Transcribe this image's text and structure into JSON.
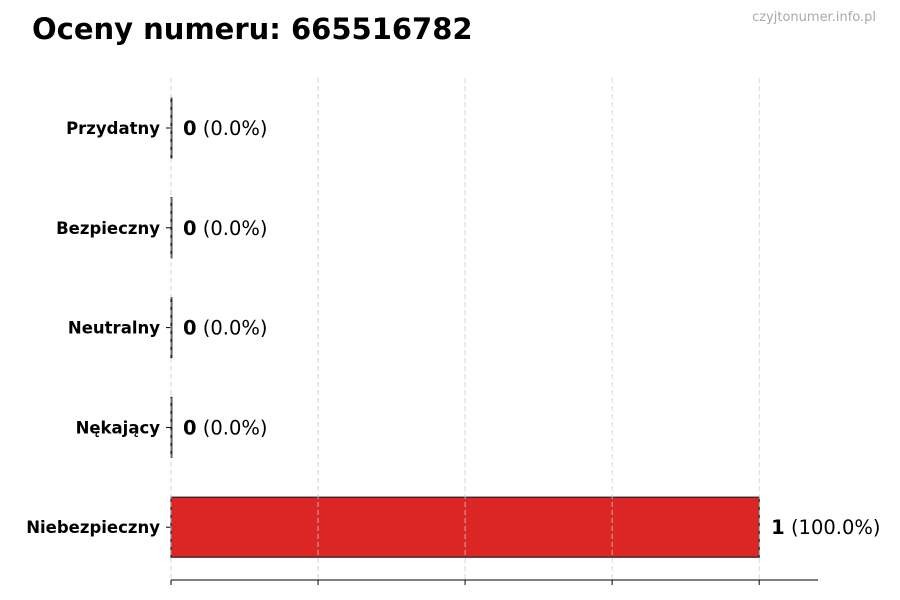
{
  "watermark": "czyjtonumer.info.pl",
  "chart_data": {
    "type": "bar",
    "orientation": "horizontal",
    "title": "Oceny numeru: 665516782",
    "categories": [
      "Przydatny",
      "Bezpieczny",
      "Neutralny",
      "Nękający",
      "Niebezpieczny"
    ],
    "values": [
      0,
      0,
      0,
      0,
      1
    ],
    "labels": [
      "(0.0%)",
      "(0.0%)",
      "(0.0%)",
      "(0.0%)",
      "(100.0%)"
    ],
    "colors": [
      "#2ca02c",
      "#2ca02c",
      "#999999",
      "#ff7f0e",
      "#dc2626"
    ],
    "xlim": [
      0,
      1.1
    ],
    "xticks": [
      0,
      0.25,
      0.5,
      0.75,
      1
    ],
    "grid": "x dashed",
    "xlabel": "",
    "ylabel": ""
  }
}
